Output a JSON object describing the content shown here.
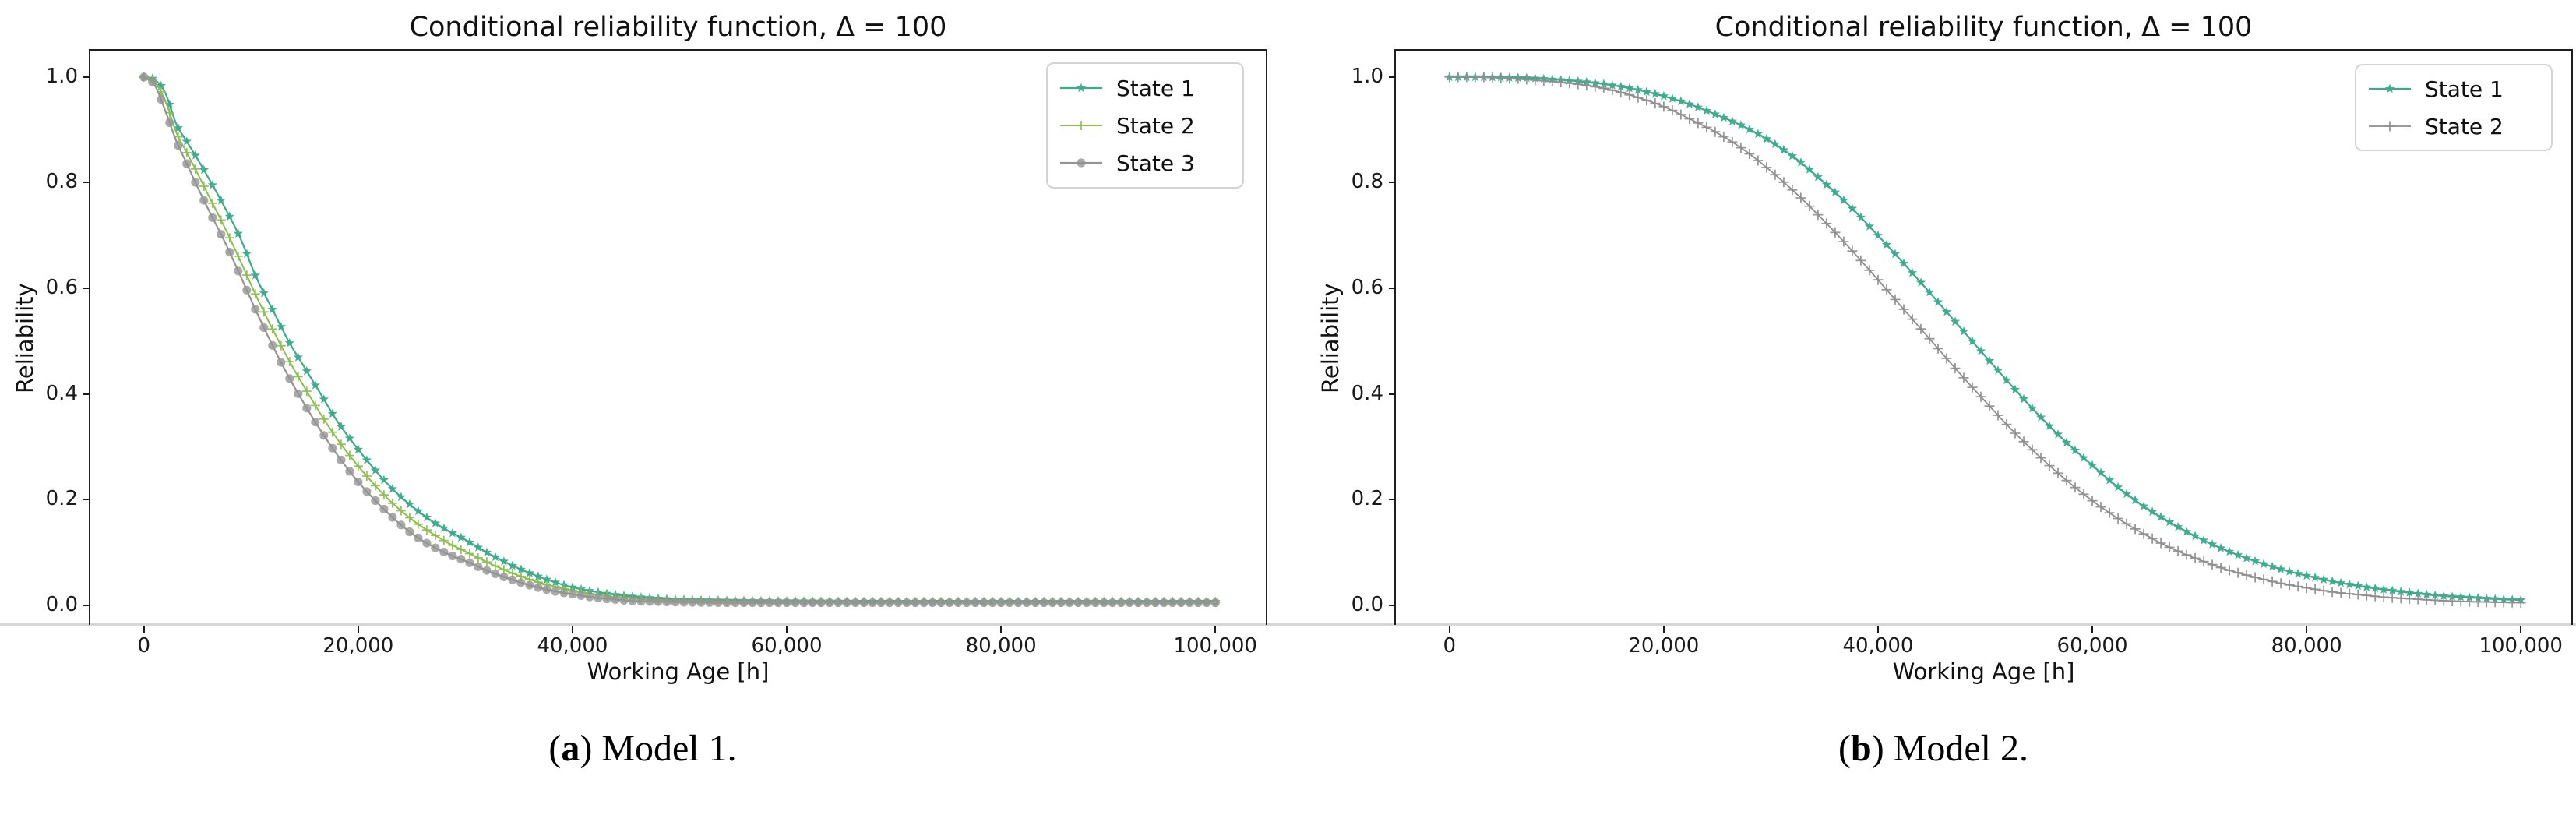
{
  "page": {
    "background": "#ffffff",
    "bottom_rule_color": "#d6d6d6"
  },
  "captions": [
    {
      "open": "(",
      "letter": "a",
      "close": ")",
      "text": "Model 1."
    },
    {
      "open": "(",
      "letter": "b",
      "close": ")",
      "text": "Model 2."
    }
  ],
  "chart_data": {
    "type": "line",
    "figures": [
      {
        "id": "a",
        "title": "Conditional reliability function, Δ = 100",
        "xlabel": "Working Age [h]",
        "ylabel": "Reliability",
        "xlim": [
          -5000,
          105000
        ],
        "ylim": [
          -0.04,
          1.05
        ],
        "grid": false,
        "legend_position": "upper right",
        "x_ticks": [
          {
            "value": 0,
            "label": "0"
          },
          {
            "value": 20000,
            "label": "20,000"
          },
          {
            "value": 40000,
            "label": "40,000"
          },
          {
            "value": 60000,
            "label": "60,000"
          },
          {
            "value": 80000,
            "label": "80,000"
          },
          {
            "value": 100000,
            "label": "100,000"
          }
        ],
        "y_ticks": [
          {
            "value": 0.0,
            "label": "0.0"
          },
          {
            "value": 0.2,
            "label": "0.2"
          },
          {
            "value": 0.4,
            "label": "0.4"
          },
          {
            "value": 0.6,
            "label": "0.6"
          },
          {
            "value": 0.8,
            "label": "0.8"
          },
          {
            "value": 1.0,
            "label": "1.0"
          }
        ],
        "series": [
          {
            "name": "State 1",
            "color": "#3aab8c",
            "marker": "star",
            "marker_size": 6.5,
            "marker_every": 800,
            "line_width": 2.2,
            "points": [
              [
                0,
                1.0
              ],
              [
                1000,
                0.995
              ],
              [
                2000,
                0.97
              ],
              [
                3000,
                0.912
              ],
              [
                4000,
                0.878
              ],
              [
                5000,
                0.845
              ],
              [
                6000,
                0.81
              ],
              [
                7500,
                0.755
              ],
              [
                9000,
                0.695
              ],
              [
                10500,
                0.62
              ],
              [
                12000,
                0.56
              ],
              [
                13500,
                0.5
              ],
              [
                15000,
                0.45
              ],
              [
                16500,
                0.4
              ],
              [
                18000,
                0.35
              ],
              [
                19500,
                0.308
              ],
              [
                21000,
                0.27
              ],
              [
                22500,
                0.235
              ],
              [
                24000,
                0.205
              ],
              [
                25500,
                0.18
              ],
              [
                27000,
                0.158
              ],
              [
                28500,
                0.14
              ],
              [
                30000,
                0.124
              ],
              [
                32000,
                0.1
              ],
              [
                34000,
                0.079
              ],
              [
                36000,
                0.061
              ],
              [
                38000,
                0.046
              ],
              [
                40000,
                0.034
              ],
              [
                42000,
                0.026
              ],
              [
                44000,
                0.02
              ],
              [
                46000,
                0.016
              ],
              [
                48000,
                0.013
              ],
              [
                50000,
                0.011
              ],
              [
                55000,
                0.009
              ],
              [
                60000,
                0.008
              ],
              [
                70000,
                0.007
              ],
              [
                80000,
                0.007
              ],
              [
                90000,
                0.007
              ],
              [
                100000,
                0.007
              ]
            ]
          },
          {
            "name": "State 2",
            "color": "#8cbe4d",
            "marker": "plus",
            "marker_size": 6.0,
            "marker_every": 800,
            "line_width": 2.0,
            "points": [
              [
                0,
                1.0
              ],
              [
                1000,
                0.99
              ],
              [
                2000,
                0.955
              ],
              [
                3000,
                0.896
              ],
              [
                4000,
                0.857
              ],
              [
                5000,
                0.818
              ],
              [
                6000,
                0.777
              ],
              [
                7500,
                0.717
              ],
              [
                9000,
                0.652
              ],
              [
                10500,
                0.585
              ],
              [
                12000,
                0.523
              ],
              [
                13500,
                0.465
              ],
              [
                15000,
                0.412
              ],
              [
                16500,
                0.362
              ],
              [
                18000,
                0.316
              ],
              [
                19500,
                0.276
              ],
              [
                21000,
                0.24
              ],
              [
                22500,
                0.207
              ],
              [
                24000,
                0.179
              ],
              [
                25500,
                0.155
              ],
              [
                27000,
                0.135
              ],
              [
                28500,
                0.117
              ],
              [
                30000,
                0.102
              ],
              [
                32000,
                0.082
              ],
              [
                34000,
                0.064
              ],
              [
                36000,
                0.049
              ],
              [
                38000,
                0.037
              ],
              [
                40000,
                0.028
              ],
              [
                42000,
                0.021
              ],
              [
                44000,
                0.016
              ],
              [
                46000,
                0.013
              ],
              [
                48000,
                0.01
              ],
              [
                50000,
                0.009
              ],
              [
                55000,
                0.007
              ],
              [
                60000,
                0.006
              ],
              [
                70000,
                0.006
              ],
              [
                80000,
                0.006
              ],
              [
                90000,
                0.006
              ],
              [
                100000,
                0.006
              ]
            ]
          },
          {
            "name": "State 3",
            "color": "#949494",
            "marker": "circle",
            "marker_size": 5.6,
            "marker_every": 800,
            "line_width": 2.2,
            "points": [
              [
                0,
                1.0
              ],
              [
                1000,
                0.985
              ],
              [
                2000,
                0.936
              ],
              [
                3000,
                0.88
              ],
              [
                4000,
                0.836
              ],
              [
                5000,
                0.792
              ],
              [
                6000,
                0.75
              ],
              [
                7500,
                0.69
              ],
              [
                9000,
                0.624
              ],
              [
                10500,
                0.556
              ],
              [
                12000,
                0.492
              ],
              [
                13500,
                0.433
              ],
              [
                15000,
                0.38
              ],
              [
                16500,
                0.331
              ],
              [
                18000,
                0.286
              ],
              [
                19500,
                0.246
              ],
              [
                21000,
                0.211
              ],
              [
                22500,
                0.18
              ],
              [
                24000,
                0.152
              ],
              [
                25500,
                0.129
              ],
              [
                27000,
                0.111
              ],
              [
                28500,
                0.096
              ],
              [
                30000,
                0.084
              ],
              [
                32000,
                0.066
              ],
              [
                34000,
                0.051
              ],
              [
                36000,
                0.038
              ],
              [
                38000,
                0.028
              ],
              [
                40000,
                0.021
              ],
              [
                42000,
                0.015
              ],
              [
                44000,
                0.011
              ],
              [
                46000,
                0.008
              ],
              [
                48000,
                0.007
              ],
              [
                50000,
                0.006
              ],
              [
                55000,
                0.005
              ],
              [
                60000,
                0.005
              ],
              [
                70000,
                0.005
              ],
              [
                80000,
                0.005
              ],
              [
                90000,
                0.005
              ],
              [
                100000,
                0.005
              ]
            ]
          }
        ]
      },
      {
        "id": "b",
        "title": "Conditional reliability function, Δ = 100",
        "xlabel": "Working Age [h]",
        "ylabel": "Reliability",
        "xlim": [
          -5000,
          105000
        ],
        "ylim": [
          -0.04,
          1.05
        ],
        "grid": false,
        "legend_position": "upper right",
        "x_ticks": [
          {
            "value": 0,
            "label": "0"
          },
          {
            "value": 20000,
            "label": "20,000"
          },
          {
            "value": 40000,
            "label": "40,000"
          },
          {
            "value": 60000,
            "label": "60,000"
          },
          {
            "value": 80000,
            "label": "80,000"
          },
          {
            "value": 100000,
            "label": "100,000"
          }
        ],
        "y_ticks": [
          {
            "value": 0.0,
            "label": "0.0"
          },
          {
            "value": 0.2,
            "label": "0.2"
          },
          {
            "value": 0.4,
            "label": "0.4"
          },
          {
            "value": 0.6,
            "label": "0.6"
          },
          {
            "value": 0.8,
            "label": "0.8"
          },
          {
            "value": 1.0,
            "label": "1.0"
          }
        ],
        "series": [
          {
            "name": "State 1",
            "color": "#3aab8c",
            "marker": "star",
            "marker_size": 6.5,
            "marker_every": 800,
            "line_width": 2.2,
            "points": [
              [
                0,
                1.0
              ],
              [
                2500,
                1.0
              ],
              [
                5000,
                0.999
              ],
              [
                7500,
                0.998
              ],
              [
                10000,
                0.995
              ],
              [
                12500,
                0.991
              ],
              [
                15000,
                0.985
              ],
              [
                17500,
                0.976
              ],
              [
                20000,
                0.964
              ],
              [
                22500,
                0.948
              ],
              [
                25000,
                0.928
              ],
              [
                27500,
                0.906
              ],
              [
                30000,
                0.878
              ],
              [
                32500,
                0.843
              ],
              [
                35000,
                0.8
              ],
              [
                37500,
                0.753
              ],
              [
                40000,
                0.7
              ],
              [
                42500,
                0.645
              ],
              [
                45000,
                0.588
              ],
              [
                47500,
                0.53
              ],
              [
                50000,
                0.472
              ],
              [
                52500,
                0.415
              ],
              [
                55000,
                0.36
              ],
              [
                57500,
                0.31
              ],
              [
                60000,
                0.265
              ],
              [
                62500,
                0.222
              ],
              [
                65000,
                0.185
              ],
              [
                67500,
                0.154
              ],
              [
                70000,
                0.127
              ],
              [
                72500,
                0.104
              ],
              [
                75000,
                0.085
              ],
              [
                77500,
                0.069
              ],
              [
                80000,
                0.056
              ],
              [
                82500,
                0.045
              ],
              [
                85000,
                0.036
              ],
              [
                87500,
                0.029
              ],
              [
                90000,
                0.023
              ],
              [
                92500,
                0.018
              ],
              [
                95000,
                0.015
              ],
              [
                97500,
                0.012
              ],
              [
                100000,
                0.01
              ]
            ]
          },
          {
            "name": "State 2",
            "color": "#8e8e8e",
            "marker": "plus",
            "marker_size": 6.5,
            "marker_every": 800,
            "line_width": 1.8,
            "points": [
              [
                0,
                1.0
              ],
              [
                2500,
                1.0
              ],
              [
                5000,
                0.998
              ],
              [
                7500,
                0.995
              ],
              [
                10000,
                0.991
              ],
              [
                12500,
                0.985
              ],
              [
                15000,
                0.976
              ],
              [
                17500,
                0.962
              ],
              [
                20000,
                0.944
              ],
              [
                22500,
                0.92
              ],
              [
                25000,
                0.894
              ],
              [
                27500,
                0.862
              ],
              [
                30000,
                0.822
              ],
              [
                32500,
                0.777
              ],
              [
                35000,
                0.727
              ],
              [
                37500,
                0.673
              ],
              [
                40000,
                0.616
              ],
              [
                42500,
                0.558
              ],
              [
                45000,
                0.5
              ],
              [
                47500,
                0.442
              ],
              [
                50000,
                0.386
              ],
              [
                52500,
                0.332
              ],
              [
                55000,
                0.283
              ],
              [
                57500,
                0.238
              ],
              [
                60000,
                0.198
              ],
              [
                62500,
                0.163
              ],
              [
                65000,
                0.133
              ],
              [
                67500,
                0.107
              ],
              [
                70000,
                0.086
              ],
              [
                72500,
                0.068
              ],
              [
                75000,
                0.054
              ],
              [
                77500,
                0.042
              ],
              [
                80000,
                0.033
              ],
              [
                82500,
                0.025
              ],
              [
                85000,
                0.02
              ],
              [
                87500,
                0.015
              ],
              [
                90000,
                0.012
              ],
              [
                92500,
                0.009
              ],
              [
                95000,
                0.007
              ],
              [
                97500,
                0.006
              ],
              [
                100000,
                0.005
              ]
            ]
          }
        ]
      }
    ]
  }
}
